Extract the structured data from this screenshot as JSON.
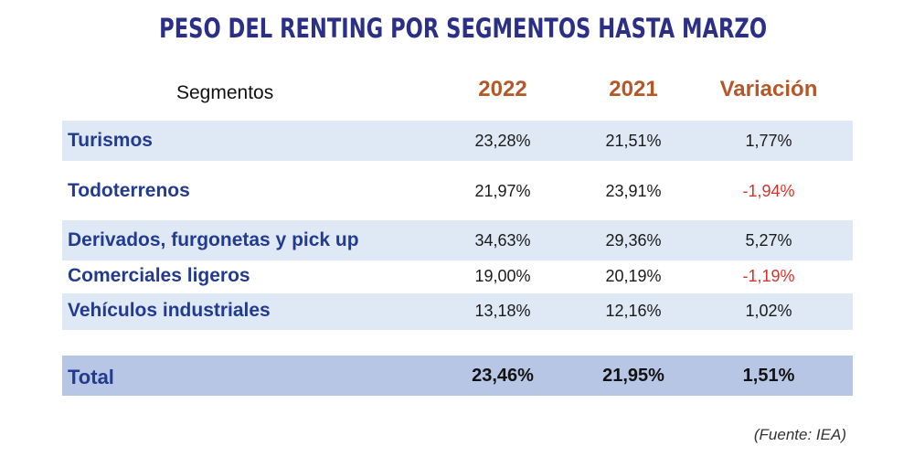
{
  "chart_data": {
    "type": "table",
    "title": "PESO DEL RENTING POR SEGMENTOS HASTA MARZO",
    "columns": [
      "Segmentos",
      "2022",
      "2021",
      "Variación"
    ],
    "rows": [
      {
        "segment": "Turismos",
        "y2022": "23,28%",
        "y2021": "21,51%",
        "variation": "1,77%",
        "variation_value": 1.77
      },
      {
        "segment": "Todoterrenos",
        "y2022": "21,97%",
        "y2021": "23,91%",
        "variation": "-1,94%",
        "variation_value": -1.94
      },
      {
        "segment": "Derivados, furgonetas y pick up",
        "y2022": "34,63%",
        "y2021": "29,36%",
        "variation": "5,27%",
        "variation_value": 5.27
      },
      {
        "segment": "Comerciales ligeros",
        "y2022": "19,00%",
        "y2021": "20,19%",
        "variation": "-1,19%",
        "variation_value": -1.19
      },
      {
        "segment": "Vehículos industriales",
        "y2022": "13,18%",
        "y2021": "12,16%",
        "variation": "1,02%",
        "variation_value": 1.02
      }
    ],
    "total": {
      "segment": "Total",
      "y2022": "23,46%",
      "y2021": "21,95%",
      "variation": "1,51%"
    },
    "source": "(Fuente: IEA)"
  },
  "colors": {
    "title": "#2b2f86",
    "header_year": "#b4582a",
    "segment_text": "#223b8f",
    "negative": "#d8322a",
    "row_shade": "#dfe8f5",
    "total_shade": "#b7c6e4"
  }
}
